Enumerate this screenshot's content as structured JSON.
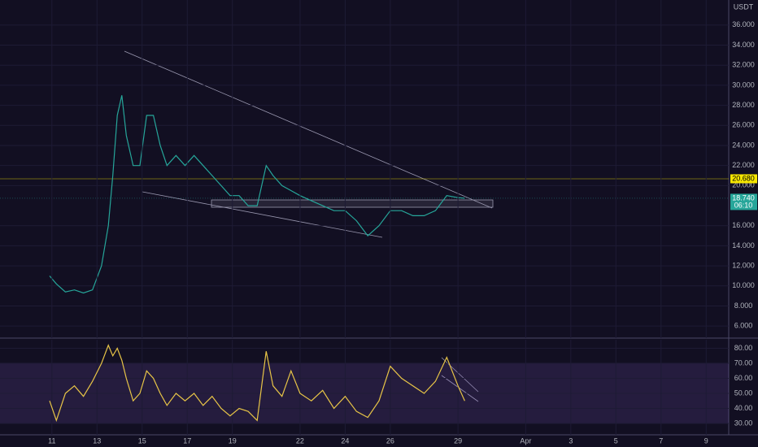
{
  "chart_data": [
    {
      "type": "line",
      "unit_label": "USDT",
      "color": "#26a69a",
      "grid": true,
      "x": [
        10.9,
        11.2,
        11.6,
        12.0,
        12.4,
        12.8,
        13.2,
        13.5,
        13.7,
        13.9,
        14.1,
        14.3,
        14.6,
        14.9,
        15.2,
        15.5,
        15.8,
        16.1,
        16.5,
        16.9,
        17.3,
        17.7,
        18.1,
        18.5,
        18.9,
        19.3,
        19.7,
        20.1,
        20.5,
        20.8,
        21.2,
        21.6,
        22.0,
        22.5,
        23.0,
        23.5,
        24.0,
        24.5,
        25.0,
        25.5,
        26.0,
        26.5,
        27.0,
        27.5,
        28.0,
        28.5,
        29.0,
        29.3
      ],
      "values": [
        11.0,
        10.2,
        9.4,
        9.6,
        9.3,
        9.6,
        12,
        16,
        21,
        27,
        29,
        25,
        22,
        22,
        27,
        27,
        24,
        22,
        23,
        22,
        23,
        22,
        21,
        20,
        19,
        19,
        18,
        18,
        22,
        21,
        20,
        19.5,
        19,
        18.5,
        18,
        17.5,
        17.5,
        16.5,
        15,
        16,
        17.5,
        17.5,
        17,
        17,
        17.5,
        19,
        18.8,
        18.74
      ],
      "xlim": [
        8.7,
        41.0
      ],
      "ylim": [
        4.8,
        38.5
      ],
      "yticks": [
        {
          "value": 6,
          "label": "6.000"
        },
        {
          "value": 8,
          "label": "8.000"
        },
        {
          "value": 10,
          "label": "10.000"
        },
        {
          "value": 12,
          "label": "12.000"
        },
        {
          "value": 14,
          "label": "14.000"
        },
        {
          "value": 16,
          "label": "16.000"
        },
        {
          "value": 20,
          "label": "20.000"
        },
        {
          "value": 22,
          "label": "22.000"
        },
        {
          "value": 24,
          "label": "24.000"
        },
        {
          "value": 26,
          "label": "26.000"
        },
        {
          "value": 28,
          "label": "28.000"
        },
        {
          "value": 30,
          "label": "30.000"
        },
        {
          "value": 32,
          "label": "32.000"
        },
        {
          "value": 34,
          "label": "34.000"
        },
        {
          "value": 36,
          "label": "36.000"
        }
      ],
      "annotations": [
        {
          "value": 20.68,
          "label": "20.680",
          "color": "#f7e600"
        },
        {
          "value": 18.74,
          "label": "18.740",
          "color": "#26a69a"
        }
      ],
      "countdown": "06:10"
    },
    {
      "type": "line",
      "color": "#e8c547",
      "grid": true,
      "x": [
        10.9,
        11.2,
        11.6,
        12.0,
        12.4,
        12.8,
        13.2,
        13.5,
        13.7,
        13.9,
        14.1,
        14.3,
        14.6,
        14.9,
        15.2,
        15.5,
        15.8,
        16.1,
        16.5,
        16.9,
        17.3,
        17.7,
        18.1,
        18.5,
        18.9,
        19.3,
        19.7,
        20.1,
        20.5,
        20.8,
        21.2,
        21.6,
        22.0,
        22.5,
        23.0,
        23.5,
        24.0,
        24.5,
        25.0,
        25.5,
        26.0,
        26.5,
        27.0,
        27.5,
        28.0,
        28.5,
        29.0,
        29.3
      ],
      "values": [
        45,
        32,
        50,
        55,
        48,
        58,
        70,
        82,
        75,
        80,
        72,
        60,
        45,
        50,
        65,
        60,
        50,
        42,
        50,
        45,
        50,
        42,
        48,
        40,
        35,
        40,
        38,
        32,
        78,
        55,
        48,
        65,
        50,
        45,
        52,
        40,
        48,
        38,
        34,
        45,
        68,
        60,
        55,
        50,
        58,
        74,
        55,
        45
      ],
      "xlim": [
        8.7,
        41.0
      ],
      "ylim": [
        22.4,
        85.7
      ],
      "yticks": [
        {
          "value": 30,
          "label": "30.00"
        },
        {
          "value": 40,
          "label": "40.00"
        },
        {
          "value": 50,
          "label": "50.00"
        },
        {
          "value": 60,
          "label": "60.00"
        },
        {
          "value": 70,
          "label": "70.00"
        },
        {
          "value": 80,
          "label": "80.00"
        }
      ],
      "band": [
        30,
        70
      ],
      "xticks": [
        11,
        13,
        15,
        17,
        19,
        22,
        24,
        26,
        29,
        {
          "value": 32,
          "label": "Apr"
        },
        {
          "value": 34,
          "label": "3"
        },
        {
          "value": 36,
          "label": "5"
        },
        {
          "value": 38,
          "label": "7"
        },
        {
          "value": 40,
          "label": "9"
        }
      ]
    }
  ]
}
